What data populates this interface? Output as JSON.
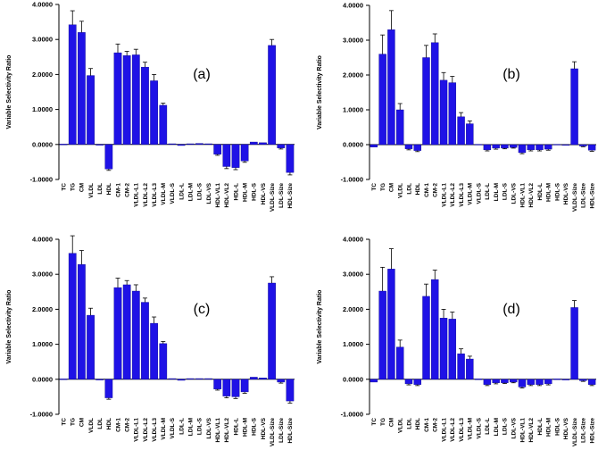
{
  "chart_data": [
    {
      "type": "bar",
      "panel_label": "(a)",
      "ylabel": "Variable Selectivity Ratio",
      "ylim": [
        -1,
        4
      ],
      "ytick_labels": [
        "-1.0000",
        "0.0000",
        "1.0000",
        "2.0000",
        "3.0000",
        "4.0000"
      ],
      "bar_color": "#1f12e6",
      "categories": [
        "TC",
        "TG",
        "CM",
        "VLDL",
        "LDL",
        "HDL",
        "CM-1",
        "CM-2",
        "VLDL-L1",
        "VLDL-L2",
        "VLDL-L3",
        "VLDL-M",
        "VLDL-S",
        "LDL-L",
        "LDL-M",
        "LDL-S",
        "LDL-VS",
        "HDL-VL1",
        "HDL-VL2",
        "HDL-L",
        "HDL-M",
        "HDL-S",
        "HDL-VS",
        "VLDL-Size",
        "LDL-Size",
        "HDL-Size"
      ],
      "values": [
        0.01,
        3.42,
        3.2,
        1.97,
        0.0,
        -0.7,
        2.62,
        2.54,
        2.56,
        2.21,
        1.82,
        1.12,
        0.02,
        -0.03,
        0.02,
        0.03,
        0.02,
        -0.28,
        -0.63,
        -0.66,
        -0.47,
        0.07,
        0.05,
        2.83,
        -0.1,
        -0.8
      ],
      "errors": [
        0,
        0.4,
        0.32,
        0.2,
        0,
        0.04,
        0.25,
        0.12,
        0.16,
        0.14,
        0.18,
        0.06,
        0,
        0,
        0,
        0,
        0,
        0.03,
        0.06,
        0.06,
        0.04,
        0,
        0,
        0.17,
        0.03,
        0.07
      ]
    },
    {
      "type": "bar",
      "panel_label": "(b)",
      "ylabel": "Variable Selectivity Ratio",
      "ylim": [
        -1,
        4
      ],
      "ytick_labels": [
        "-1.0000",
        "0.0000",
        "1.0000",
        "2.0000",
        "3.0000",
        "4.0000"
      ],
      "bar_color": "#1f12e6",
      "categories": [
        "TC",
        "TG",
        "CM",
        "VLDL",
        "LDL",
        "HDL",
        "CM-1",
        "CM-2",
        "VLDL-L1",
        "VLDL-L2",
        "VLDL-L3",
        "VLDL-M",
        "VLDL-S",
        "LDL-L",
        "LDL-M",
        "LDL-S",
        "LDL-VS",
        "HDL-VL1",
        "HDL-VL2",
        "HDL-L",
        "HDL-M",
        "HDL-S",
        "HDL-VS",
        "VLDL-Size",
        "LDL-Size",
        "HDL-Size"
      ],
      "values": [
        -0.07,
        2.6,
        3.3,
        1.0,
        -0.12,
        -0.17,
        2.5,
        2.93,
        1.85,
        1.78,
        0.8,
        0.6,
        0.01,
        -0.15,
        -0.1,
        -0.1,
        -0.08,
        -0.23,
        -0.15,
        -0.15,
        -0.13,
        0.01,
        0.0,
        2.18,
        -0.04,
        -0.16
      ],
      "errors": [
        0,
        0.55,
        0.55,
        0.18,
        0.03,
        0.03,
        0.35,
        0.25,
        0.22,
        0.18,
        0.12,
        0.08,
        0,
        0.03,
        0.03,
        0.02,
        0.02,
        0.03,
        0.03,
        0.03,
        0.03,
        0,
        0,
        0.2,
        0.02,
        0.03
      ]
    },
    {
      "type": "bar",
      "panel_label": "(c)",
      "ylabel": "Variable Selectivity Ratio",
      "ylim": [
        -1,
        4
      ],
      "ytick_labels": [
        "-1.0000",
        "0.0000",
        "1.0000",
        "2.0000",
        "3.0000",
        "4.0000"
      ],
      "bar_color": "#1f12e6",
      "categories": [
        "TC",
        "TG",
        "CM",
        "VLDL",
        "LDL",
        "HDL",
        "CM-1",
        "CM-2",
        "VLDL-L1",
        "VLDL-L2",
        "VLDL-L3",
        "VLDL-M",
        "VLDL-S",
        "LDL-L",
        "LDL-M",
        "LDL-S",
        "LDL-VS",
        "HDL-VL1",
        "HDL-VL2",
        "HDL-L",
        "HDL-M",
        "HDL-S",
        "HDL-VS",
        "VLDL-Size",
        "LDL-Size",
        "HDL-Size"
      ],
      "values": [
        0.01,
        3.6,
        3.28,
        1.83,
        0.0,
        -0.53,
        2.62,
        2.7,
        2.52,
        2.2,
        1.6,
        1.02,
        0.02,
        -0.03,
        0.02,
        0.02,
        0.02,
        -0.28,
        -0.48,
        -0.5,
        -0.36,
        0.06,
        0.04,
        2.75,
        -0.08,
        -0.62
      ],
      "errors": [
        0,
        0.5,
        0.4,
        0.2,
        0,
        0.04,
        0.27,
        0.12,
        0.18,
        0.12,
        0.18,
        0.06,
        0,
        0,
        0,
        0,
        0,
        0.03,
        0.05,
        0.05,
        0.04,
        0,
        0,
        0.18,
        0.03,
        0.06
      ]
    },
    {
      "type": "bar",
      "panel_label": "(d)",
      "ylabel": "Variable Selectivity Ratio",
      "ylim": [
        -1,
        4
      ],
      "ytick_labels": [
        "-1.0000",
        "0.0000",
        "1.0000",
        "2.0000",
        "3.0000",
        "4.0000"
      ],
      "bar_color": "#1f12e6",
      "categories": [
        "TC",
        "TG",
        "CM",
        "VLDL",
        "LDL",
        "HDL",
        "CM-1",
        "CM-2",
        "VLDL-L1",
        "VLDL-L2",
        "VLDL-L3",
        "VLDL-M",
        "VLDL-S",
        "LDL-L",
        "LDL-M",
        "LDL-S",
        "LDL-VS",
        "HDL-VL1",
        "HDL-VL2",
        "HDL-L",
        "HDL-M",
        "HDL-S",
        "HDL-VS",
        "VLDL-Size",
        "LDL-Size",
        "HDL-Size"
      ],
      "values": [
        -0.08,
        2.52,
        3.15,
        0.92,
        -0.13,
        -0.15,
        2.37,
        2.85,
        1.75,
        1.72,
        0.73,
        0.58,
        0.01,
        -0.15,
        -0.1,
        -0.1,
        -0.08,
        -0.22,
        -0.15,
        -0.15,
        -0.13,
        0.01,
        0.0,
        2.05,
        -0.04,
        -0.15
      ],
      "errors": [
        0,
        0.68,
        0.58,
        0.2,
        0.03,
        0.03,
        0.35,
        0.27,
        0.25,
        0.2,
        0.14,
        0.08,
        0,
        0.03,
        0.03,
        0.02,
        0.02,
        0.03,
        0.03,
        0.03,
        0.03,
        0,
        0,
        0.2,
        0.02,
        0.03
      ]
    }
  ]
}
